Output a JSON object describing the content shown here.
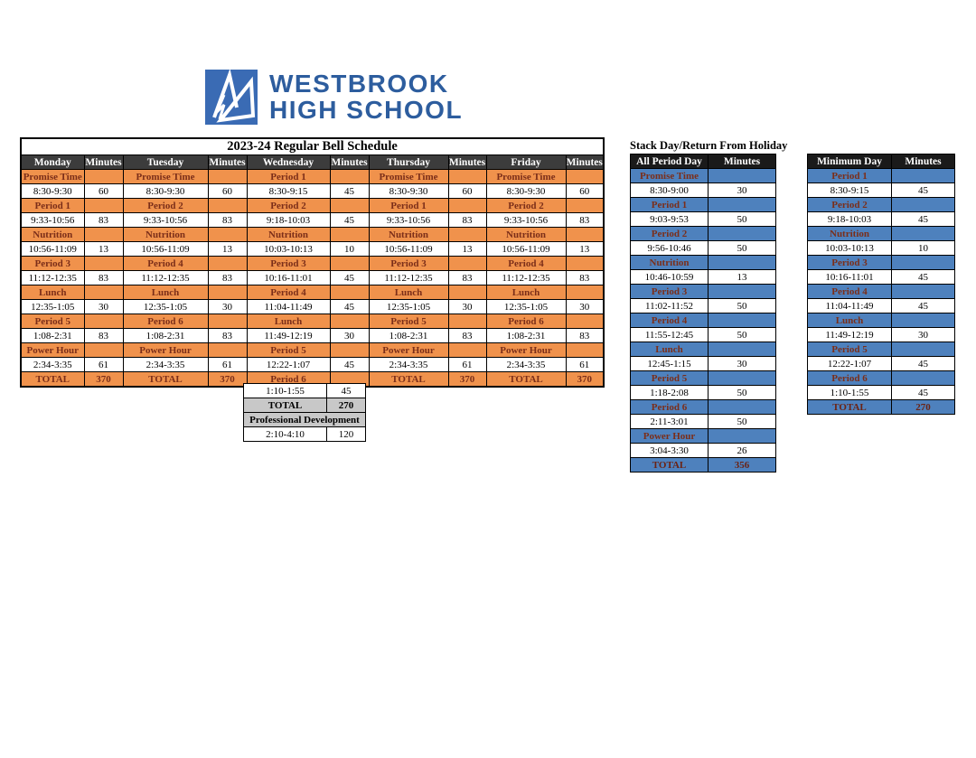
{
  "logo": {
    "line1": "WESTBROOK",
    "line2": "HIGH SCHOOL",
    "brand_color": "#2d5d9e",
    "icon": "westbrook-w-logo",
    "icon_color": "#3a6bb4"
  },
  "colors": {
    "orange": "#f0924c",
    "blue": "#4e81bd",
    "maroon_text": "#7b2e19",
    "main_header_bg": "#3c3c3c",
    "side_header_bg": "#1a1a1a",
    "gray": "#c8c8c8"
  },
  "main_table": {
    "title": "2023-24 Regular Bell Schedule",
    "headers": [
      "Monday",
      "Minutes",
      "Tuesday",
      "Minutes",
      "Wednesday",
      "Minutes",
      "Thursday",
      "Minutes",
      "Friday",
      "Minutes"
    ],
    "rows": [
      [
        {
          "s": "p",
          "l": "Promise Time"
        },
        {
          "s": "p",
          "l": "Promise Time"
        },
        {
          "s": "p",
          "l": "Period 1"
        },
        {
          "s": "p",
          "l": "Promise Time"
        },
        {
          "s": "p",
          "l": "Promise Time"
        }
      ],
      [
        {
          "s": "t",
          "l": "8:30-9:30",
          "m": "60"
        },
        {
          "s": "t",
          "l": "8:30-9:30",
          "m": "60"
        },
        {
          "s": "t",
          "l": "8:30-9:15",
          "m": "45"
        },
        {
          "s": "t",
          "l": "8:30-9:30",
          "m": "60"
        },
        {
          "s": "t",
          "l": "8:30-9:30",
          "m": "60"
        }
      ],
      [
        {
          "s": "p",
          "l": "Period 1"
        },
        {
          "s": "p",
          "l": "Period 2"
        },
        {
          "s": "p",
          "l": "Period 2"
        },
        {
          "s": "p",
          "l": "Period 1"
        },
        {
          "s": "p",
          "l": "Period 2"
        }
      ],
      [
        {
          "s": "t",
          "l": "9:33-10:56",
          "m": "83"
        },
        {
          "s": "t",
          "l": "9:33-10:56",
          "m": "83"
        },
        {
          "s": "t",
          "l": "9:18-10:03",
          "m": "45"
        },
        {
          "s": "t",
          "l": "9:33-10:56",
          "m": "83"
        },
        {
          "s": "t",
          "l": "9:33-10:56",
          "m": "83"
        }
      ],
      [
        {
          "s": "p",
          "l": "Nutrition"
        },
        {
          "s": "p",
          "l": "Nutrition"
        },
        {
          "s": "p",
          "l": "Nutrition"
        },
        {
          "s": "p",
          "l": "Nutrition"
        },
        {
          "s": "p",
          "l": "Nutrition"
        }
      ],
      [
        {
          "s": "t",
          "l": "10:56-11:09",
          "m": "13"
        },
        {
          "s": "t",
          "l": "10:56-11:09",
          "m": "13"
        },
        {
          "s": "t",
          "l": "10:03-10:13",
          "m": "10"
        },
        {
          "s": "t",
          "l": "10:56-11:09",
          "m": "13"
        },
        {
          "s": "t",
          "l": "10:56-11:09",
          "m": "13"
        }
      ],
      [
        {
          "s": "p",
          "l": "Period 3"
        },
        {
          "s": "p",
          "l": "Period 4"
        },
        {
          "s": "p",
          "l": "Period 3"
        },
        {
          "s": "p",
          "l": "Period 3"
        },
        {
          "s": "p",
          "l": "Period 4"
        }
      ],
      [
        {
          "s": "t",
          "l": "11:12-12:35",
          "m": "83"
        },
        {
          "s": "t",
          "l": "11:12-12:35",
          "m": "83"
        },
        {
          "s": "t",
          "l": "10:16-11:01",
          "m": "45"
        },
        {
          "s": "t",
          "l": "11:12-12:35",
          "m": "83"
        },
        {
          "s": "t",
          "l": "11:12-12:35",
          "m": "83"
        }
      ],
      [
        {
          "s": "p",
          "l": "Lunch"
        },
        {
          "s": "p",
          "l": "Lunch"
        },
        {
          "s": "p",
          "l": "Period 4"
        },
        {
          "s": "p",
          "l": "Lunch"
        },
        {
          "s": "p",
          "l": "Lunch"
        }
      ],
      [
        {
          "s": "t",
          "l": "12:35-1:05",
          "m": "30"
        },
        {
          "s": "t",
          "l": "12:35-1:05",
          "m": "30"
        },
        {
          "s": "t",
          "l": "11:04-11:49",
          "m": "45"
        },
        {
          "s": "t",
          "l": "12:35-1:05",
          "m": "30"
        },
        {
          "s": "t",
          "l": "12:35-1:05",
          "m": "30"
        }
      ],
      [
        {
          "s": "p",
          "l": "Period 5"
        },
        {
          "s": "p",
          "l": "Period 6"
        },
        {
          "s": "p",
          "l": "Lunch"
        },
        {
          "s": "p",
          "l": "Period 5"
        },
        {
          "s": "p",
          "l": "Period 6"
        }
      ],
      [
        {
          "s": "t",
          "l": "1:08-2:31",
          "m": "83"
        },
        {
          "s": "t",
          "l": "1:08-2:31",
          "m": "83"
        },
        {
          "s": "t",
          "l": "11:49-12:19",
          "m": "30"
        },
        {
          "s": "t",
          "l": "1:08-2:31",
          "m": "83"
        },
        {
          "s": "t",
          "l": "1:08-2:31",
          "m": "83"
        }
      ],
      [
        {
          "s": "p",
          "l": "Power Hour"
        },
        {
          "s": "p",
          "l": "Power Hour"
        },
        {
          "s": "p",
          "l": "Period 5"
        },
        {
          "s": "p",
          "l": "Power Hour"
        },
        {
          "s": "p",
          "l": "Power Hour"
        }
      ],
      [
        {
          "s": "t",
          "l": "2:34-3:35",
          "m": "61"
        },
        {
          "s": "t",
          "l": "2:34-3:35",
          "m": "61"
        },
        {
          "s": "t",
          "l": "12:22-1:07",
          "m": "45"
        },
        {
          "s": "t",
          "l": "2:34-3:35",
          "m": "61"
        },
        {
          "s": "t",
          "l": "2:34-3:35",
          "m": "61"
        }
      ],
      [
        {
          "s": "tot",
          "l": "TOTAL",
          "m": "370"
        },
        {
          "s": "tot",
          "l": "TOTAL",
          "m": "370"
        },
        {
          "s": "p",
          "l": "Period 6"
        },
        {
          "s": "tot",
          "l": "TOTAL",
          "m": "370"
        },
        {
          "s": "tot",
          "l": "TOTAL",
          "m": "370"
        }
      ]
    ],
    "wednesday_extension": [
      {
        "s": "t",
        "l": "1:10-1:55",
        "m": "45"
      },
      {
        "s": "gtot",
        "l": "TOTAL",
        "m": "270"
      },
      {
        "s": "gspan",
        "l": "Professional Development"
      },
      {
        "s": "t",
        "l": "2:10-4:10",
        "m": "120"
      }
    ]
  },
  "stack_table": {
    "title": "Stack Day/Return From Holiday",
    "headers": [
      "All Period Day",
      "Minutes"
    ],
    "rows": [
      {
        "s": "p",
        "l": "Promise Time"
      },
      {
        "s": "t",
        "l": "8:30-9:00",
        "m": "30"
      },
      {
        "s": "p",
        "l": "Period 1"
      },
      {
        "s": "t",
        "l": "9:03-9:53",
        "m": "50"
      },
      {
        "s": "p",
        "l": "Period 2"
      },
      {
        "s": "t",
        "l": "9:56-10:46",
        "m": "50"
      },
      {
        "s": "p",
        "l": "Nutrition"
      },
      {
        "s": "t",
        "l": "10:46-10:59",
        "m": "13"
      },
      {
        "s": "p",
        "l": "Period 3"
      },
      {
        "s": "t",
        "l": "11:02-11:52",
        "m": "50"
      },
      {
        "s": "p",
        "l": "Period 4"
      },
      {
        "s": "t",
        "l": "11:55-12:45",
        "m": "50"
      },
      {
        "s": "p",
        "l": "Lunch"
      },
      {
        "s": "t",
        "l": "12:45-1:15",
        "m": "30"
      },
      {
        "s": "p",
        "l": "Period 5"
      },
      {
        "s": "t",
        "l": "1:18-2:08",
        "m": "50"
      },
      {
        "s": "p",
        "l": "Period 6"
      },
      {
        "s": "t",
        "l": "2:11-3:01",
        "m": "50"
      },
      {
        "s": "p",
        "l": "Power Hour"
      },
      {
        "s": "t",
        "l": "3:04-3:30",
        "m": "26"
      },
      {
        "s": "tot",
        "l": "TOTAL",
        "m": "356"
      }
    ]
  },
  "minimum_table": {
    "headers": [
      "Minimum Day",
      "Minutes"
    ],
    "rows": [
      {
        "s": "p",
        "l": "Period 1"
      },
      {
        "s": "t",
        "l": "8:30-9:15",
        "m": "45"
      },
      {
        "s": "p",
        "l": "Period 2"
      },
      {
        "s": "t",
        "l": "9:18-10:03",
        "m": "45"
      },
      {
        "s": "p",
        "l": "Nutrition"
      },
      {
        "s": "t",
        "l": "10:03-10:13",
        "m": "10"
      },
      {
        "s": "p",
        "l": "Period 3"
      },
      {
        "s": "t",
        "l": "10:16-11:01",
        "m": "45"
      },
      {
        "s": "p",
        "l": "Period 4"
      },
      {
        "s": "t",
        "l": "11:04-11:49",
        "m": "45"
      },
      {
        "s": "p",
        "l": "Lunch"
      },
      {
        "s": "t",
        "l": "11:49-12:19",
        "m": "30"
      },
      {
        "s": "p",
        "l": "Period 5"
      },
      {
        "s": "t",
        "l": "12:22-1:07",
        "m": "45"
      },
      {
        "s": "p",
        "l": "Period 6"
      },
      {
        "s": "t",
        "l": "1:10-1:55",
        "m": "45"
      },
      {
        "s": "tot",
        "l": "TOTAL",
        "m": "270"
      }
    ]
  }
}
